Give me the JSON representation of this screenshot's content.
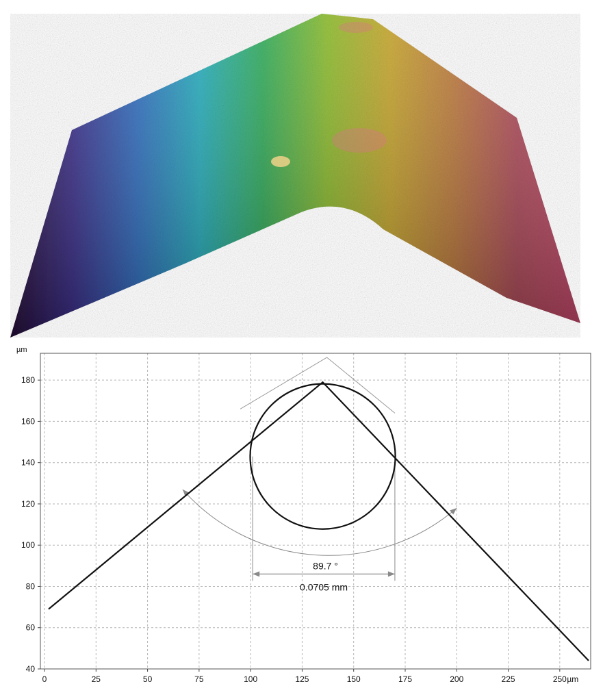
{
  "chart_data": [
    {
      "type": "surface3d",
      "colormap": [
        "#2a0f3c",
        "#3b2f8f",
        "#2f6fc4",
        "#23b0c0",
        "#2fae58",
        "#8cbd2a",
        "#c9a62a",
        "#c07a3a",
        "#b24a5a",
        "#c9476c"
      ],
      "title": "",
      "xlabel": "",
      "ylabel": ""
    },
    {
      "type": "line",
      "title": "",
      "ylabel": "µm",
      "xlabel": "",
      "x_unit_label": "µm",
      "xlim": [
        -2,
        265
      ],
      "ylim": [
        40,
        193
      ],
      "xticks": [
        0,
        25,
        50,
        75,
        100,
        125,
        150,
        175,
        200,
        225,
        250
      ],
      "yticks": [
        40,
        60,
        80,
        100,
        120,
        140,
        160,
        180
      ],
      "grid": true,
      "series": [
        {
          "values_x": [
            2,
            135,
            264
          ],
          "values_y": [
            69,
            179,
            44
          ]
        }
      ],
      "annotations": {
        "inscribed_circle": {
          "cx": 135,
          "cy": 143,
          "r": 35.2
        },
        "extension_lines": {
          "apex": [
            137,
            191
          ]
        },
        "angle": {
          "label": "89.7 °",
          "center": [
            137,
            191
          ],
          "radius": 95,
          "from": [
            67,
            127
          ],
          "to": [
            200,
            118
          ]
        },
        "width": {
          "label": "0.0705 mm",
          "x1": 101,
          "x2": 170,
          "y": 86
        }
      }
    }
  ]
}
